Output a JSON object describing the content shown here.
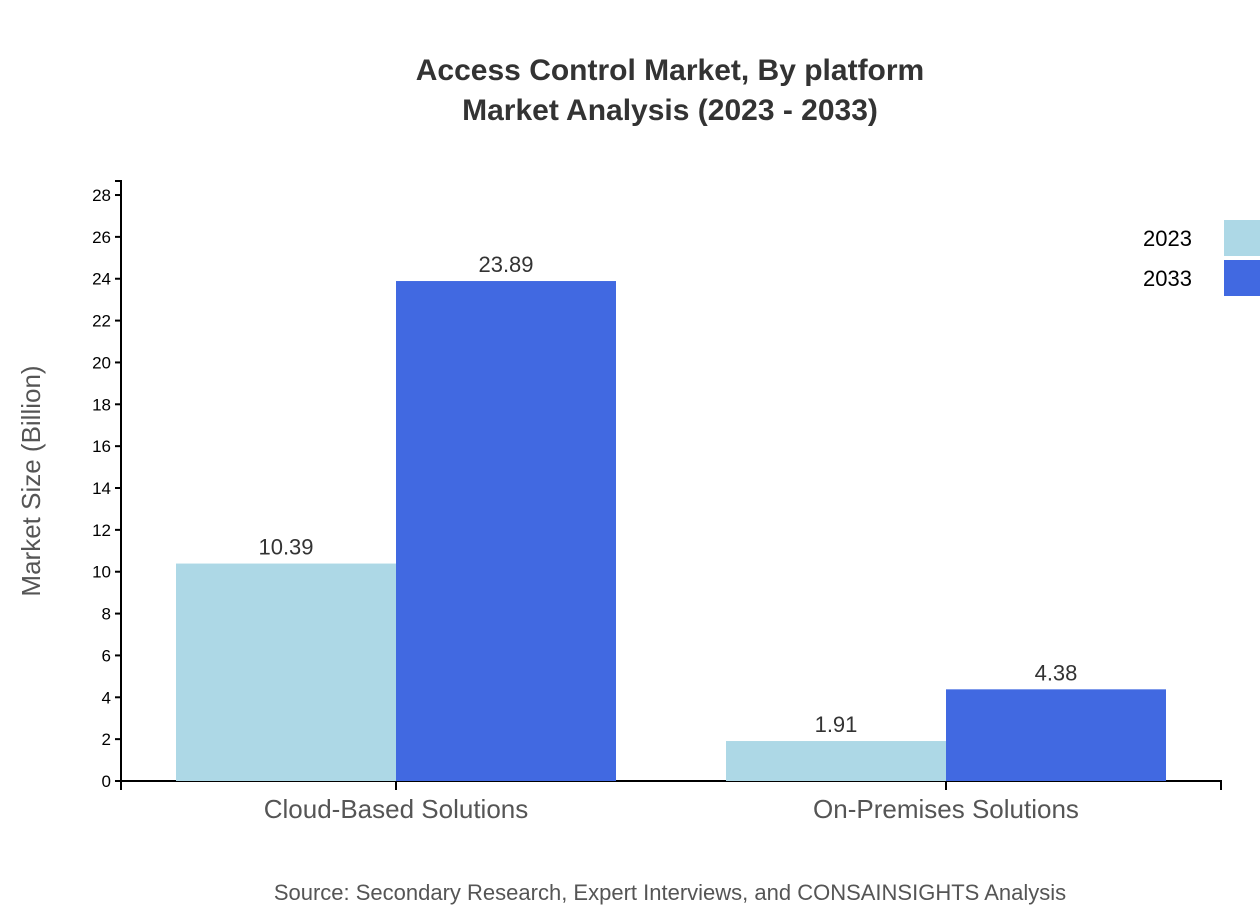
{
  "chart_data": {
    "type": "bar",
    "title": "Access Control Market, By platform",
    "subtitle": "Market Analysis (2023 - 2033)",
    "xlabel": "",
    "ylabel": "Market Size (Billion)",
    "categories": [
      "Cloud-Based Solutions",
      "On-Premises Solutions"
    ],
    "series": [
      {
        "name": "2023",
        "color": "#add8e6",
        "values": [
          10.39,
          1.91
        ]
      },
      {
        "name": "2033",
        "color": "#4169e1",
        "values": [
          23.89,
          4.38
        ]
      }
    ],
    "ylim": [
      0,
      28.67
    ],
    "yticks": [
      0,
      2,
      4,
      6,
      8,
      10,
      12,
      14,
      16,
      18,
      20,
      22,
      24,
      26,
      28
    ],
    "grid": false,
    "legend": "top-right",
    "source": "Source: Secondary Research, Expert Interviews, and CONSAINSIGHTS Analysis"
  }
}
